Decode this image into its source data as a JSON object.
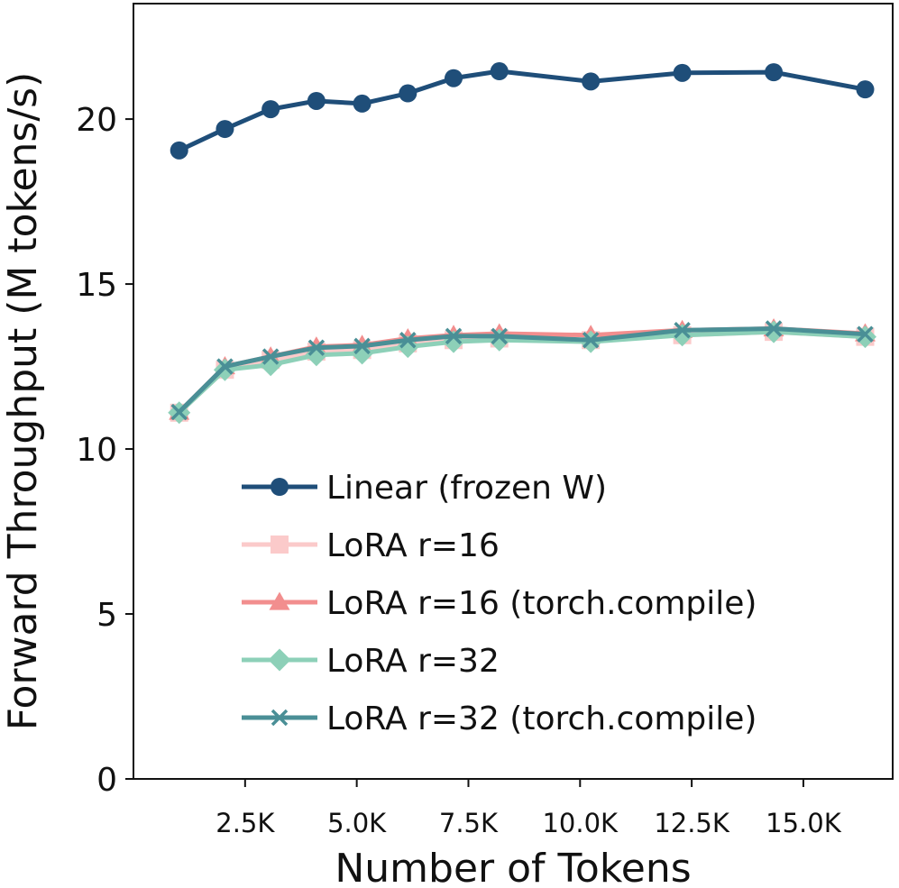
{
  "chart_data": {
    "type": "line",
    "title": "",
    "xlabel": "Number of Tokens",
    "ylabel": "Forward Throughput (M tokens/s)",
    "xlim": [
      0,
      17000
    ],
    "ylim": [
      0,
      23.5
    ],
    "x_ticks": [
      2500,
      5000,
      7500,
      10000,
      12500,
      15000
    ],
    "x_tick_labels": [
      "2.5K",
      "5.0K",
      "7.5K",
      "10.0K",
      "12.5K",
      "15.0K"
    ],
    "y_ticks": [
      0,
      5,
      10,
      15,
      20
    ],
    "y_tick_labels": [
      "0",
      "5",
      "10",
      "15",
      "20"
    ],
    "grid": false,
    "legend_position": "lower-right",
    "x": [
      1024,
      2048,
      3072,
      4096,
      5120,
      6144,
      7168,
      8192,
      10240,
      12288,
      14336,
      16384
    ],
    "series": [
      {
        "name": "Linear (frozen W)",
        "color": "#1f4e79",
        "marker": "circle",
        "values": [
          19.05,
          19.7,
          20.3,
          20.55,
          20.47,
          20.78,
          21.24,
          21.45,
          21.14,
          21.4,
          21.42,
          20.9
        ]
      },
      {
        "name": "LoRA r=16",
        "color": "#fbcaca",
        "marker": "square",
        "values": [
          11.1,
          12.4,
          12.7,
          12.95,
          13.0,
          13.2,
          13.3,
          13.35,
          13.3,
          13.45,
          13.55,
          13.4
        ]
      },
      {
        "name": "LoRA r=16 (torch.compile)",
        "color": "#f28e8e",
        "marker": "triangle",
        "values": [
          11.12,
          12.5,
          12.8,
          13.1,
          13.15,
          13.35,
          13.45,
          13.5,
          13.45,
          13.6,
          13.65,
          13.5
        ]
      },
      {
        "name": "LoRA r=32",
        "color": "#8dd0b8",
        "marker": "diamond",
        "values": [
          11.1,
          12.4,
          12.55,
          12.85,
          12.9,
          13.1,
          13.25,
          13.3,
          13.25,
          13.45,
          13.55,
          13.4
        ]
      },
      {
        "name": "LoRA r=32 (torch.compile)",
        "color": "#4a8f96",
        "marker": "x",
        "values": [
          11.12,
          12.5,
          12.8,
          13.07,
          13.12,
          13.3,
          13.42,
          13.42,
          13.3,
          13.6,
          13.65,
          13.48
        ]
      }
    ]
  }
}
